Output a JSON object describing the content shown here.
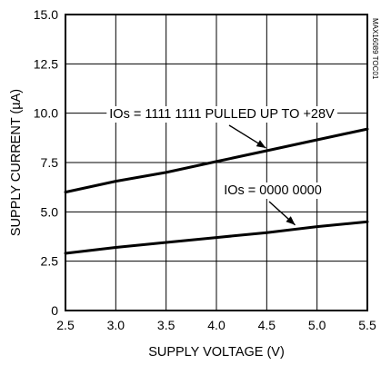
{
  "chart_data": {
    "type": "line",
    "xlabel": "SUPPLY VOLTAGE (V)",
    "ylabel": "SUPPLY CURRENT (µA)",
    "xlim": [
      2.5,
      5.5
    ],
    "ylim": [
      0,
      15.0
    ],
    "x_ticks": [
      "2.5",
      "3.0",
      "3.5",
      "4.0",
      "4.5",
      "5.0",
      "5.5"
    ],
    "y_ticks": [
      "0",
      "2.5",
      "5.0",
      "7.5",
      "10.0",
      "12.5",
      "15.0"
    ],
    "grid": true,
    "series": [
      {
        "name": "IOs = 1111 1111 PULLED UP TO +28V",
        "x": [
          2.5,
          3.0,
          3.5,
          4.0,
          4.5,
          5.0,
          5.5
        ],
        "y": [
          6.0,
          6.55,
          7.0,
          7.55,
          8.1,
          8.65,
          9.2
        ]
      },
      {
        "name": "IOs = 0000 0000",
        "x": [
          2.5,
          3.0,
          3.5,
          4.0,
          4.5,
          5.0,
          5.5
        ],
        "y": [
          2.9,
          3.2,
          3.45,
          3.7,
          3.95,
          4.25,
          4.5
        ]
      }
    ],
    "annotations": [
      {
        "text": "IOs = 1111 1111 PULLED UP TO +28V",
        "points_to": {
          "x": 4.5,
          "y": 8.1
        }
      },
      {
        "text": "IOs = 0000 0000",
        "points_to": {
          "x": 4.8,
          "y": 4.15
        }
      }
    ],
    "side_code": "MAX16089 TOC01"
  }
}
